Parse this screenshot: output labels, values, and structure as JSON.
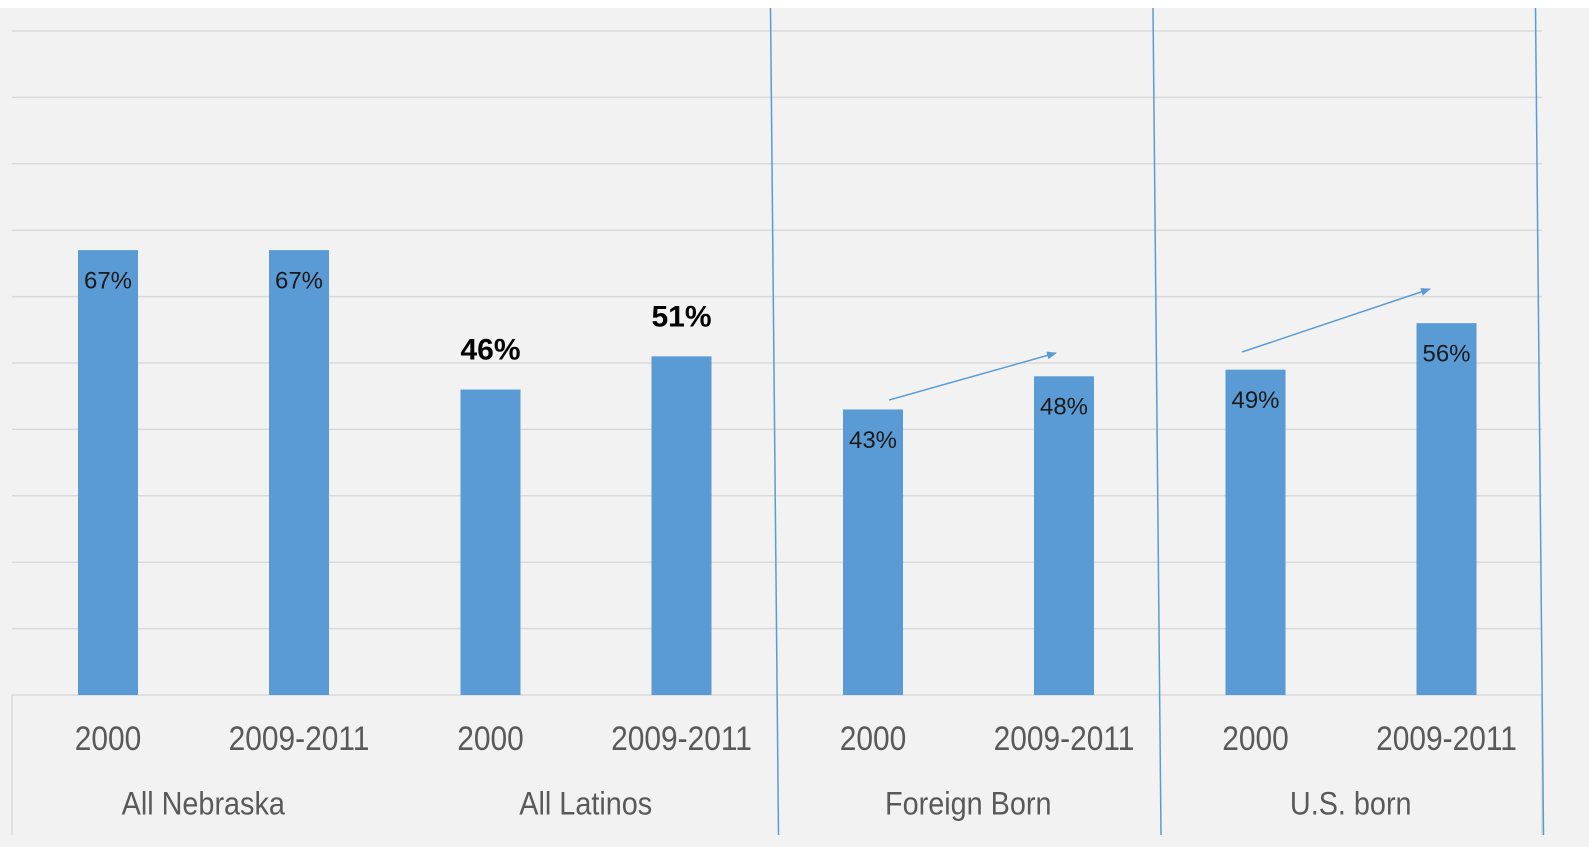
{
  "chart_data": {
    "type": "bar",
    "groups": [
      {
        "name": "All Nebraska",
        "categories": [
          "2000",
          "2009-2011"
        ],
        "values": [
          67,
          67
        ],
        "value_labels": [
          "67%",
          "67%"
        ],
        "emphasis": false
      },
      {
        "name": "All Latinos",
        "categories": [
          "2000",
          "2009-2011"
        ],
        "values": [
          46,
          51
        ],
        "value_labels": [
          "46%",
          "51%"
        ],
        "emphasis": true
      },
      {
        "name": "Foreign Born",
        "categories": [
          "2000",
          "2009-2011"
        ],
        "values": [
          43,
          48
        ],
        "value_labels": [
          "43%",
          "48%"
        ],
        "emphasis": false
      },
      {
        "name": "U.S. born",
        "categories": [
          "2000",
          "2009-2011"
        ],
        "values": [
          49,
          56
        ],
        "value_labels": [
          "49%",
          "56%"
        ],
        "emphasis": false
      }
    ],
    "color": "#5b9bd5",
    "ylim": [
      0,
      100
    ],
    "yticks": [
      0,
      10,
      20,
      30,
      40,
      50,
      60,
      70,
      80,
      90,
      100
    ],
    "grid": true
  }
}
